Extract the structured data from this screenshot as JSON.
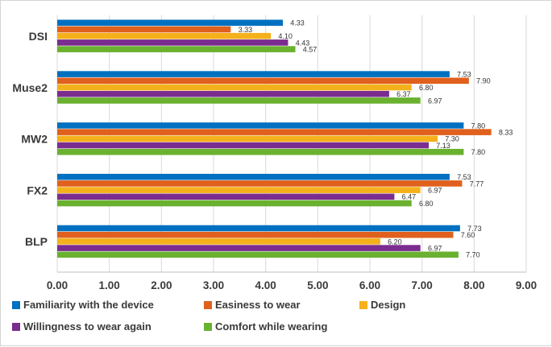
{
  "chart_data": {
    "type": "bar",
    "orientation": "horizontal",
    "title": "",
    "xlabel": "",
    "ylabel": "",
    "xlim": [
      0,
      9
    ],
    "x_ticks": [
      0,
      1,
      2,
      3,
      4,
      5,
      6,
      7,
      8,
      9
    ],
    "x_tick_labels": [
      "0.00",
      "1.00",
      "2.00",
      "3.00",
      "4.00",
      "5.00",
      "6.00",
      "7.00",
      "8.00",
      "9.00"
    ],
    "grid": "vertical",
    "legend_position": "bottom",
    "categories": [
      "DSI",
      "Muse2",
      "MW2",
      "FX2",
      "BLP"
    ],
    "series": [
      {
        "name": "Familiarity with the device",
        "color": "#0070c0",
        "values": [
          4.33,
          7.53,
          7.8,
          7.53,
          7.73
        ],
        "labels": [
          "4.33",
          "7.53",
          "7.80",
          "7.53",
          "7.73"
        ]
      },
      {
        "name": "Easiness to wear",
        "color": "#e0601d",
        "values": [
          3.33,
          7.9,
          8.33,
          7.77,
          7.6
        ],
        "labels": [
          "3.33",
          "7.90",
          "8.33",
          "7.77",
          "7.60"
        ]
      },
      {
        "name": "Design",
        "color": "#f4b11c",
        "values": [
          4.1,
          6.8,
          7.3,
          6.97,
          6.2
        ],
        "labels": [
          "4.10",
          "6.80",
          "7.30",
          "6.97",
          "6.20"
        ]
      },
      {
        "name": "Willingness to wear again",
        "color": "#7b2c8f",
        "values": [
          4.43,
          6.37,
          7.13,
          6.47,
          6.97
        ],
        "labels": [
          "4.43",
          "6.37",
          "7.13",
          "6.47",
          "6.97"
        ]
      },
      {
        "name": "Comfort while wearing",
        "color": "#6ab130",
        "values": [
          4.57,
          6.97,
          7.8,
          6.8,
          7.7
        ],
        "labels": [
          "4.57",
          "6.97",
          "7.80",
          "6.80",
          "7.70"
        ]
      }
    ]
  }
}
